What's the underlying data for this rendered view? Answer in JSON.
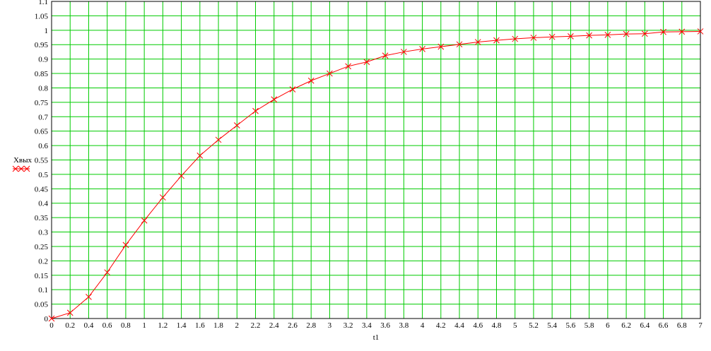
{
  "chart_data": {
    "type": "line",
    "xlabel": "t1",
    "ylabel": "Xвых",
    "xlim": [
      0,
      7
    ],
    "ylim": [
      0,
      1.1
    ],
    "grid": true,
    "x_ticks": [
      "0",
      "0.2",
      "0.4",
      "0.6",
      "0.8",
      "1",
      "1.2",
      "1.4",
      "1.6",
      "1.8",
      "2",
      "2.2",
      "2.4",
      "2.6",
      "2.8",
      "3",
      "3.2",
      "3.4",
      "3.6",
      "3.8",
      "4",
      "4.2",
      "4.4",
      "4.6",
      "4.8",
      "5",
      "5.2",
      "5.4",
      "5.6",
      "5.8",
      "6",
      "6.2",
      "6.4",
      "6.6",
      "6.8",
      "7"
    ],
    "y_ticks": [
      "0",
      "0.05",
      "0.1",
      "0.15",
      "0.2",
      "0.25",
      "0.3",
      "0.35",
      "0.4",
      "0.45",
      "0.5",
      "0.55",
      "0.6",
      "0.65",
      "0.7",
      "0.75",
      "0.8",
      "0.85",
      "0.9",
      "0.95",
      "1",
      "1.05",
      "1.1"
    ],
    "series": [
      {
        "name": "Xвых",
        "x": [
          0,
          0.2,
          0.4,
          0.6,
          0.8,
          1,
          1.2,
          1.4,
          1.6,
          1.8,
          2,
          2.2,
          2.4,
          2.6,
          2.8,
          3,
          3.2,
          3.4,
          3.6,
          3.8,
          4,
          4.2,
          4.4,
          4.6,
          4.8,
          5,
          5.2,
          5.4,
          5.6,
          5.8,
          6,
          6.2,
          6.4,
          6.6,
          6.8,
          7
        ],
        "y": [
          0,
          0.02,
          0.075,
          0.16,
          0.255,
          0.34,
          0.42,
          0.495,
          0.565,
          0.62,
          0.67,
          0.72,
          0.76,
          0.795,
          0.825,
          0.85,
          0.875,
          0.89,
          0.912,
          0.925,
          0.935,
          0.943,
          0.951,
          0.959,
          0.965,
          0.97,
          0.974,
          0.977,
          0.979,
          0.982,
          0.984,
          0.987,
          0.988,
          0.994,
          0.995,
          0.996
        ]
      }
    ],
    "colors": {
      "grid": "#00cc00",
      "line": "#ff0000",
      "marker": "#ff0000",
      "frame": "#000000"
    }
  }
}
